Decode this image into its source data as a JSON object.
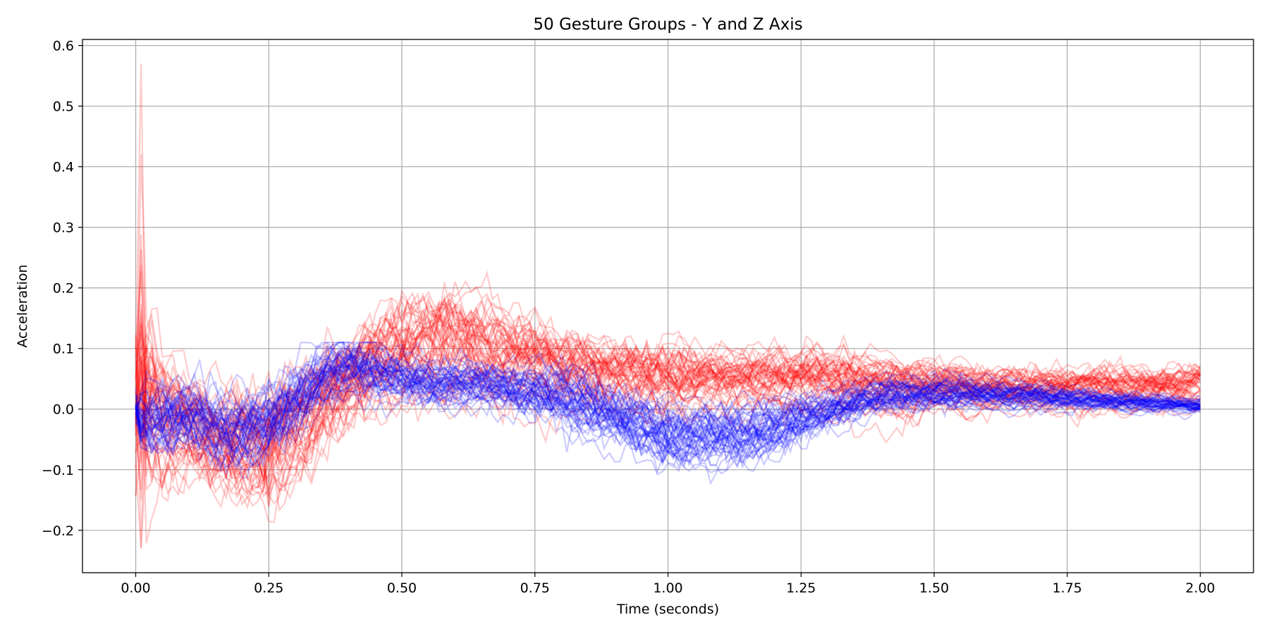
{
  "chart_data": {
    "type": "line",
    "title": "50 Gesture Groups - Y and Z Axis",
    "xlabel": "Time (seconds)",
    "ylabel": "Acceleration",
    "xlim": [
      -0.1,
      2.1
    ],
    "ylim": [
      -0.27,
      0.61
    ],
    "xticks": [
      0.0,
      0.25,
      0.5,
      0.75,
      1.0,
      1.25,
      1.5,
      1.75,
      2.0
    ],
    "xtick_labels": [
      "0.00",
      "0.25",
      "0.50",
      "0.75",
      "1.00",
      "1.25",
      "1.50",
      "1.75",
      "2.00"
    ],
    "yticks": [
      -0.2,
      -0.1,
      0.0,
      0.1,
      0.2,
      0.3,
      0.4,
      0.5,
      0.6
    ],
    "ytick_labels": [
      "−0.2",
      "−0.1",
      "0.0",
      "0.1",
      "0.2",
      "0.3",
      "0.4",
      "0.5",
      "0.6"
    ],
    "grid": true,
    "legend": "none",
    "line_alpha": 0.2,
    "groups": [
      {
        "color": "#ff0000",
        "count": 50,
        "mean_trace": {
          "x": [
            0.0,
            0.005,
            0.02,
            0.05,
            0.1,
            0.15,
            0.2,
            0.25,
            0.3,
            0.35,
            0.4,
            0.45,
            0.5,
            0.55,
            0.6,
            0.65,
            0.7,
            0.75,
            0.8,
            0.9,
            1.0,
            1.1,
            1.2,
            1.3,
            1.4,
            1.5,
            1.6,
            1.7,
            1.8,
            1.9,
            2.0
          ],
          "y": [
            0.0,
            0.06,
            0.03,
            -0.02,
            -0.02,
            -0.05,
            -0.06,
            -0.05,
            -0.02,
            0.02,
            0.05,
            0.08,
            0.1,
            0.11,
            0.11,
            0.1,
            0.09,
            0.08,
            0.07,
            0.06,
            0.05,
            0.05,
            0.05,
            0.05,
            0.04,
            0.04,
            0.035,
            0.035,
            0.035,
            0.035,
            0.04
          ]
        },
        "spread": [
          0.12,
          0.18,
          0.08,
          0.06,
          0.05,
          0.05,
          0.06,
          0.07,
          0.06,
          0.05,
          0.05,
          0.05,
          0.05,
          0.05,
          0.05,
          0.045,
          0.04,
          0.04,
          0.035,
          0.035,
          0.035,
          0.03,
          0.03,
          0.03,
          0.03,
          0.025,
          0.02,
          0.02,
          0.02,
          0.02,
          0.02
        ],
        "peak_max": 0.57,
        "peak_min": -0.23
      },
      {
        "color": "#0000ff",
        "count": 50,
        "mean_trace": {
          "x": [
            0.0,
            0.005,
            0.02,
            0.05,
            0.1,
            0.15,
            0.2,
            0.25,
            0.3,
            0.35,
            0.4,
            0.45,
            0.5,
            0.55,
            0.6,
            0.65,
            0.7,
            0.75,
            0.8,
            0.9,
            1.0,
            1.1,
            1.2,
            1.3,
            1.4,
            1.5,
            1.6,
            1.7,
            1.8,
            1.9,
            2.0
          ],
          "y": [
            0.0,
            -0.01,
            -0.02,
            -0.02,
            -0.01,
            -0.03,
            -0.04,
            -0.02,
            0.02,
            0.05,
            0.07,
            0.06,
            0.05,
            0.04,
            0.04,
            0.04,
            0.03,
            0.03,
            0.02,
            -0.01,
            -0.04,
            -0.04,
            -0.03,
            0.0,
            0.02,
            0.025,
            0.025,
            0.02,
            0.015,
            0.01,
            0.005
          ]
        },
        "spread": [
          0.02,
          0.03,
          0.04,
          0.04,
          0.04,
          0.04,
          0.04,
          0.04,
          0.04,
          0.035,
          0.03,
          0.03,
          0.025,
          0.025,
          0.025,
          0.025,
          0.025,
          0.03,
          0.035,
          0.035,
          0.035,
          0.035,
          0.03,
          0.025,
          0.02,
          0.02,
          0.015,
          0.015,
          0.012,
          0.01,
          0.01
        ],
        "peak_max": 0.11,
        "peak_min": -0.15
      }
    ]
  }
}
